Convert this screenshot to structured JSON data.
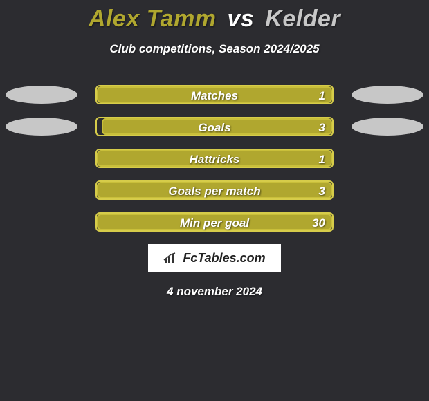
{
  "title": {
    "player1": "Alex Tamm",
    "vs": "vs",
    "player2": "Kelder",
    "player1_color": "#b0a72f",
    "player2_color": "#c7c7c7"
  },
  "subtitle": "Club competitions, Season 2024/2025",
  "colors": {
    "background": "#2c2c30",
    "bar_fill": "#b0a72f",
    "bar_border": "#c9bf3a",
    "bar_outline": "#d6cc4a",
    "ellipse_left": "#c7c7c7",
    "ellipse_right": "#c7c7c7"
  },
  "stats": [
    {
      "label": "Matches",
      "left_value": "",
      "right_value": "1",
      "fill_percent": 100,
      "show_left_ellipse": true,
      "show_right_ellipse": true
    },
    {
      "label": "Goals",
      "left_value": "",
      "right_value": "3",
      "fill_percent": 98,
      "show_left_ellipse": true,
      "show_right_ellipse": true
    },
    {
      "label": "Hattricks",
      "left_value": "",
      "right_value": "1",
      "fill_percent": 100,
      "show_left_ellipse": false,
      "show_right_ellipse": false
    },
    {
      "label": "Goals per match",
      "left_value": "",
      "right_value": "3",
      "fill_percent": 100,
      "show_left_ellipse": false,
      "show_right_ellipse": false
    },
    {
      "label": "Min per goal",
      "left_value": "",
      "right_value": "30",
      "fill_percent": 100,
      "show_left_ellipse": false,
      "show_right_ellipse": false
    }
  ],
  "footer": {
    "logo_text": "FcTables.com"
  },
  "date": "4 november 2024"
}
